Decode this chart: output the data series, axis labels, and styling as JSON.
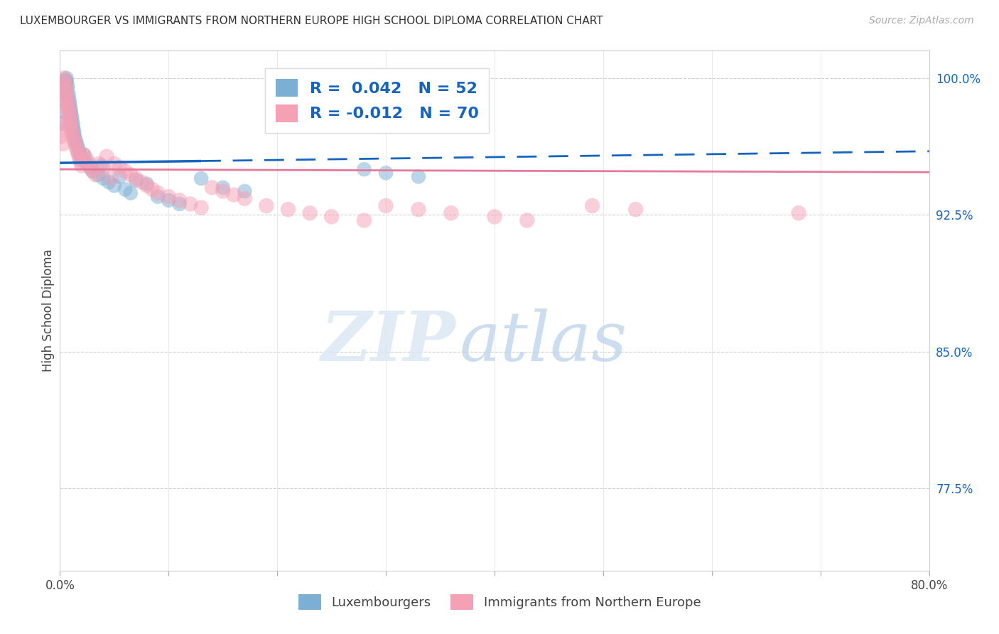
{
  "title": "LUXEMBOURGER VS IMMIGRANTS FROM NORTHERN EUROPE HIGH SCHOOL DIPLOMA CORRELATION CHART",
  "source": "Source: ZipAtlas.com",
  "ylabel": "High School Diploma",
  "xlim": [
    0.0,
    0.8
  ],
  "ylim": [
    0.73,
    1.015
  ],
  "yticks_right": [
    1.0,
    0.925,
    0.85,
    0.775
  ],
  "ytick_labels_right": [
    "100.0%",
    "92.5%",
    "85.0%",
    "77.5%"
  ],
  "R_lux": 0.042,
  "N_lux": 52,
  "R_imm": -0.012,
  "N_imm": 70,
  "color_lux": "#7bafd4",
  "color_imm": "#f4a0b5",
  "watermark_color": "#dce8f5",
  "lux_x": [
    0.001,
    0.002,
    0.003,
    0.004,
    0.005,
    0.005,
    0.006,
    0.006,
    0.007,
    0.007,
    0.008,
    0.008,
    0.009,
    0.009,
    0.01,
    0.01,
    0.011,
    0.011,
    0.012,
    0.012,
    0.013,
    0.013,
    0.014,
    0.015,
    0.016,
    0.017,
    0.018,
    0.019,
    0.02,
    0.022,
    0.025,
    0.028,
    0.03,
    0.035,
    0.038,
    0.04,
    0.045,
    0.05,
    0.055,
    0.06,
    0.065,
    0.07,
    0.08,
    0.09,
    0.1,
    0.11,
    0.13,
    0.15,
    0.17,
    0.28,
    0.3,
    0.33
  ],
  "lux_y": [
    0.975,
    0.982,
    0.988,
    0.993,
    0.997,
    0.999,
    1.0,
    0.998,
    0.996,
    0.994,
    0.991,
    0.989,
    0.987,
    0.985,
    0.983,
    0.981,
    0.979,
    0.977,
    0.975,
    0.973,
    0.971,
    0.969,
    0.967,
    0.965,
    0.963,
    0.961,
    0.959,
    0.957,
    0.955,
    0.958,
    0.953,
    0.951,
    0.949,
    0.947,
    0.952,
    0.945,
    0.943,
    0.941,
    0.946,
    0.939,
    0.937,
    0.944,
    0.942,
    0.935,
    0.933,
    0.931,
    0.945,
    0.94,
    0.938,
    0.95,
    0.948,
    0.946
  ],
  "imm_x": [
    0.001,
    0.002,
    0.002,
    0.003,
    0.003,
    0.004,
    0.004,
    0.005,
    0.005,
    0.006,
    0.006,
    0.007,
    0.007,
    0.008,
    0.008,
    0.009,
    0.009,
    0.01,
    0.01,
    0.011,
    0.011,
    0.012,
    0.013,
    0.014,
    0.015,
    0.016,
    0.017,
    0.018,
    0.019,
    0.02,
    0.022,
    0.024,
    0.026,
    0.028,
    0.03,
    0.033,
    0.036,
    0.04,
    0.043,
    0.047,
    0.05,
    0.055,
    0.06,
    0.065,
    0.07,
    0.075,
    0.08,
    0.085,
    0.09,
    0.1,
    0.11,
    0.12,
    0.13,
    0.14,
    0.15,
    0.16,
    0.17,
    0.19,
    0.21,
    0.23,
    0.25,
    0.28,
    0.3,
    0.33,
    0.36,
    0.4,
    0.43,
    0.49,
    0.53,
    0.68
  ],
  "imm_y": [
    0.968,
    0.985,
    0.976,
    0.972,
    0.964,
    1.0,
    0.998,
    0.996,
    0.994,
    0.992,
    0.99,
    0.988,
    0.986,
    0.984,
    0.982,
    0.98,
    0.978,
    0.976,
    0.974,
    0.972,
    0.97,
    0.968,
    0.966,
    0.964,
    0.962,
    0.96,
    0.958,
    0.956,
    0.954,
    0.952,
    0.958,
    0.956,
    0.954,
    0.951,
    0.949,
    0.947,
    0.953,
    0.951,
    0.957,
    0.945,
    0.953,
    0.951,
    0.949,
    0.947,
    0.945,
    0.943,
    0.941,
    0.939,
    0.937,
    0.935,
    0.933,
    0.931,
    0.929,
    0.94,
    0.938,
    0.936,
    0.934,
    0.93,
    0.928,
    0.926,
    0.924,
    0.922,
    0.93,
    0.928,
    0.926,
    0.924,
    0.922,
    0.93,
    0.928,
    0.926
  ]
}
